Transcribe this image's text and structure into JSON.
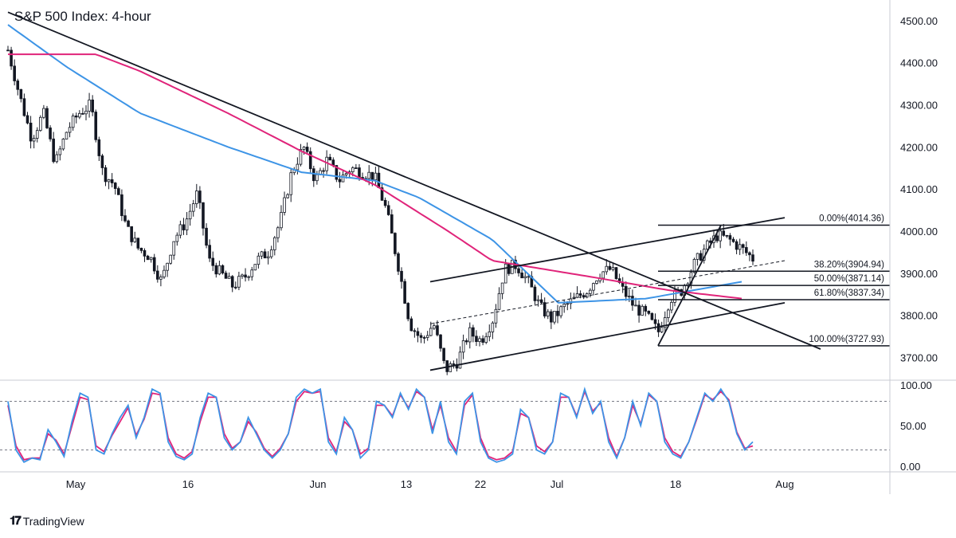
{
  "header": {
    "title": "S&P 500 Index: 4-hour"
  },
  "branding": {
    "logo_icon": "tradingview-logo-icon",
    "name": "TradingView"
  },
  "colors": {
    "candle": "#131722",
    "ma_fast": "#3d94e6",
    "ma_slow": "#e0247a",
    "stoch_k": "#3d94e6",
    "stoch_d": "#e0247a",
    "trendline": "#131722"
  },
  "chart_data": [
    {
      "type": "candlestick",
      "title": "S&P 500 Index: 4-hour",
      "y_axis": {
        "ticks": [
          "4500.00",
          "4400.00",
          "4300.00",
          "4200.00",
          "4100.00",
          "4000.00",
          "3900.00",
          "3800.00",
          "3700.00"
        ],
        "tick_values": [
          4500,
          4400,
          4300,
          4200,
          4100,
          4000,
          3900,
          3800,
          3700
        ],
        "range": [
          3650,
          4530
        ]
      },
      "x_axis": {
        "ticks": [
          "May",
          "16",
          "Jun",
          "13",
          "22",
          "Jul",
          "18",
          "Aug"
        ]
      },
      "price_path": [
        [
          "Apr 25",
          4430
        ],
        [
          "Apr 26",
          4320
        ],
        [
          "Apr 27",
          4220
        ],
        [
          "Apr 28",
          4280
        ],
        [
          "Apr 29",
          4160
        ],
        [
          "May 2",
          4240
        ],
        [
          "May 3",
          4280
        ],
        [
          "May 4",
          4300
        ],
        [
          "May 5",
          4140
        ],
        [
          "May 6",
          4110
        ],
        [
          "May 9",
          4010
        ],
        [
          "May 10",
          3960
        ],
        [
          "May 11",
          3940
        ],
        [
          "May 12",
          3880
        ],
        [
          "May 13",
          3980
        ],
        [
          "May 16",
          4020
        ],
        [
          "May 17",
          4090
        ],
        [
          "May 18",
          3930
        ],
        [
          "May 19",
          3900
        ],
        [
          "May 20",
          3870
        ],
        [
          "May 23",
          3890
        ],
        [
          "May 24",
          3930
        ],
        [
          "May 25",
          3950
        ],
        [
          "May 26",
          4020
        ],
        [
          "May 27",
          4140
        ],
        [
          "May 31",
          4200
        ],
        [
          "Jun 1",
          4120
        ],
        [
          "Jun 2",
          4170
        ],
        [
          "Jun 3",
          4120
        ],
        [
          "Jun 6",
          4150
        ],
        [
          "Jun 7",
          4140
        ],
        [
          "Jun 8",
          4130
        ],
        [
          "Jun 9",
          4050
        ],
        [
          "Jun 10",
          3920
        ],
        [
          "Jun 13",
          3780
        ],
        [
          "Jun 14",
          3740
        ],
        [
          "Jun 15",
          3780
        ],
        [
          "Jun 16",
          3670
        ],
        [
          "Jun 17",
          3690
        ],
        [
          "Jun 21",
          3760
        ],
        [
          "Jun 22",
          3740
        ],
        [
          "Jun 23",
          3790
        ],
        [
          "Jun 24",
          3910
        ],
        [
          "Jun 27",
          3920
        ],
        [
          "Jun 28",
          3880
        ],
        [
          "Jun 29",
          3820
        ],
        [
          "Jun 30",
          3790
        ],
        [
          "Jul 1",
          3820
        ],
        [
          "Jul 5",
          3840
        ],
        [
          "Jul 6",
          3860
        ],
        [
          "Jul 7",
          3900
        ],
        [
          "Jul 8",
          3910
        ],
        [
          "Jul 11",
          3860
        ],
        [
          "Jul 12",
          3820
        ],
        [
          "Jul 13",
          3800
        ],
        [
          "Jul 14",
          3760
        ],
        [
          "Jul 15",
          3840
        ],
        [
          "Jul 18",
          3860
        ],
        [
          "Jul 19",
          3920
        ],
        [
          "Jul 20",
          3960
        ],
        [
          "Jul 21",
          3990
        ],
        [
          "Jul 22",
          3980
        ],
        [
          "Jul 25",
          3960
        ],
        [
          "Jul 26",
          3935
        ]
      ],
      "moving_averages": [
        {
          "color": "#3d94e6",
          "path": [
            [
              4490,
              0
            ],
            [
              4390,
              0.08
            ],
            [
              4280,
              0.18
            ],
            [
              4200,
              0.3
            ],
            [
              4140,
              0.4
            ],
            [
              4120,
              0.5
            ],
            [
              4080,
              0.56
            ],
            [
              3980,
              0.66
            ],
            [
              3830,
              0.75
            ],
            [
              3840,
              0.87
            ],
            [
              3880,
              1
            ]
          ]
        },
        {
          "color": "#e0247a",
          "path": [
            [
              4420,
              0
            ],
            [
              4420,
              0.12
            ],
            [
              4380,
              0.18
            ],
            [
              4280,
              0.3
            ],
            [
              4190,
              0.4
            ],
            [
              4110,
              0.5
            ],
            [
              4000,
              0.6
            ],
            [
              3930,
              0.66
            ],
            [
              3890,
              0.8
            ],
            [
              3860,
              0.9
            ],
            [
              3840,
              1
            ]
          ]
        }
      ],
      "annotations": {
        "trendlines": [
          {
            "name": "downtrend-line",
            "from": [
              4520,
              0
            ],
            "to": [
              3720,
              1
            ]
          },
          {
            "name": "channel-upper",
            "from": [
              3880,
              0
            ],
            "to": [
              4032,
              1
            ]
          },
          {
            "name": "channel-lower",
            "from": [
              3670,
              0
            ],
            "to": [
              3830,
              1
            ]
          },
          {
            "name": "channel-mid",
            "from": [
              3780,
              0
            ],
            "to": [
              3930,
              1
            ],
            "dashed": true
          },
          {
            "name": "fib-swing-line",
            "from": [
              3727.93,
              0
            ],
            "to": [
              4014.36,
              1
            ]
          }
        ],
        "fibonacci": [
          {
            "label": "0.00%(4014.36)",
            "value": 4014.36
          },
          {
            "label": "38.20%(3904.94)",
            "value": 3904.94
          },
          {
            "label": "50.00%(3871.14)",
            "value": 3871.14
          },
          {
            "label": "61.80%(3837.34)",
            "value": 3837.34
          },
          {
            "label": "100.00%(3727.93)",
            "value": 3727.93
          }
        ]
      }
    },
    {
      "type": "line",
      "name": "stochastic-oscillator",
      "y_axis": {
        "ticks": [
          "100.00",
          "50.00",
          "0.00"
        ],
        "tick_values": [
          100,
          50,
          0
        ],
        "range": [
          -5,
          105
        ]
      },
      "reference_levels": [
        80,
        20
      ],
      "k_values": [
        80,
        20,
        5,
        10,
        8,
        45,
        30,
        12,
        55,
        90,
        85,
        20,
        15,
        40,
        60,
        75,
        35,
        60,
        95,
        90,
        30,
        12,
        8,
        15,
        60,
        90,
        85,
        35,
        20,
        30,
        60,
        40,
        20,
        10,
        20,
        40,
        85,
        95,
        90,
        95,
        30,
        15,
        60,
        45,
        10,
        20,
        80,
        75,
        60,
        90,
        70,
        95,
        85,
        40,
        80,
        30,
        15,
        80,
        90,
        30,
        10,
        5,
        8,
        15,
        70,
        60,
        20,
        15,
        30,
        90,
        85,
        60,
        95,
        65,
        80,
        30,
        10,
        35,
        80,
        50,
        90,
        80,
        30,
        15,
        10,
        30,
        60,
        90,
        80,
        95,
        80,
        40,
        20,
        30
      ],
      "d_values": [
        75,
        25,
        8,
        10,
        10,
        40,
        32,
        15,
        50,
        85,
        82,
        25,
        18,
        38,
        55,
        72,
        38,
        58,
        90,
        88,
        35,
        15,
        10,
        18,
        55,
        85,
        85,
        40,
        22,
        30,
        55,
        42,
        22,
        12,
        22,
        40,
        80,
        92,
        90,
        92,
        35,
        18,
        55,
        45,
        15,
        22,
        75,
        75,
        62,
        88,
        72,
        92,
        85,
        45,
        75,
        35,
        18,
        75,
        88,
        35,
        12,
        8,
        10,
        18,
        65,
        60,
        25,
        18,
        30,
        85,
        85,
        62,
        92,
        68,
        78,
        35,
        12,
        35,
        75,
        52,
        88,
        80,
        35,
        18,
        12,
        30,
        58,
        88,
        82,
        92,
        82,
        42,
        22,
        25
      ]
    }
  ]
}
